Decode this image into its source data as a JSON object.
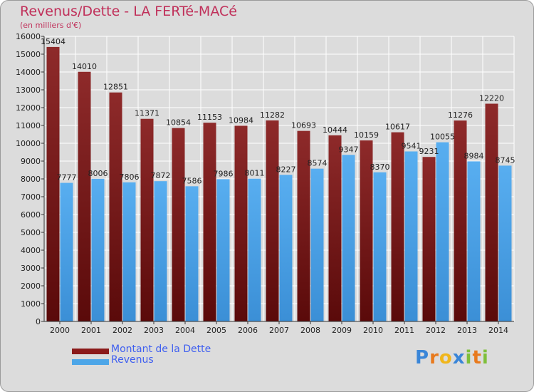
{
  "header": {
    "title": "Revenus/Dette - LA FERTé-MACé",
    "subtitle": "(en milliers d'€)"
  },
  "chart_data": {
    "type": "bar",
    "title": "Revenus/Dette - LA FERTé-MACé",
    "subtitle": "(en milliers d'€)",
    "xlabel": "",
    "ylabel": "",
    "ylim": [
      0,
      16000
    ],
    "yticks": [
      0,
      1000,
      2000,
      3000,
      4000,
      5000,
      6000,
      7000,
      8000,
      9000,
      10000,
      11000,
      12000,
      13000,
      14000,
      15000,
      16000
    ],
    "grid": true,
    "legend_position": "bottom-left",
    "categories": [
      "2000",
      "2001",
      "2002",
      "2003",
      "2004",
      "2005",
      "2006",
      "2007",
      "2008",
      "2009",
      "2010",
      "2011",
      "2012",
      "2013",
      "2014"
    ],
    "series": [
      {
        "name": "Montant de la Dette",
        "color": "#8b1a1a",
        "values": [
          15404,
          14010,
          12851,
          11371,
          10854,
          11153,
          10984,
          11282,
          10693,
          10444,
          10159,
          10617,
          9231,
          11276,
          12220
        ],
        "labels": [
          "15404",
          "14010",
          "12851",
          "11371",
          "10854",
          "11153",
          "10984",
          "11282",
          "10693",
          "10444",
          "10159",
          "10617",
          "9231",
          "11276",
          "12220"
        ]
      },
      {
        "name": "Revenus",
        "color": "#4da6e8",
        "values": [
          7777,
          8006,
          7806,
          7872,
          7586,
          7986,
          8011,
          8227,
          8574,
          9347,
          8370,
          9541,
          10055,
          8984,
          8745
        ],
        "labels": [
          "7777",
          "8006",
          "7806",
          "7872",
          "7586",
          "7986",
          "8011",
          "8227",
          "8574",
          "9347",
          "8370",
          "9541",
          "10055",
          "8984",
          "8745"
        ]
      }
    ]
  },
  "legend": {
    "items": [
      {
        "label": "Montant de la Dette",
        "color": "#8b1a1a"
      },
      {
        "label": "Revenus",
        "color": "#4da6e8"
      }
    ]
  },
  "logo": {
    "text": "Proxiti",
    "letters": [
      {
        "ch": "P",
        "color": "#3a86d8"
      },
      {
        "ch": "r",
        "color": "#e87a1e"
      },
      {
        "ch": "o",
        "color": "#f0b61c"
      },
      {
        "ch": "x",
        "color": "#3a86d8"
      },
      {
        "ch": "i",
        "color": "#7fbf3a"
      },
      {
        "ch": "t",
        "color": "#e87a1e"
      },
      {
        "ch": "i",
        "color": "#7fbf3a"
      }
    ]
  }
}
